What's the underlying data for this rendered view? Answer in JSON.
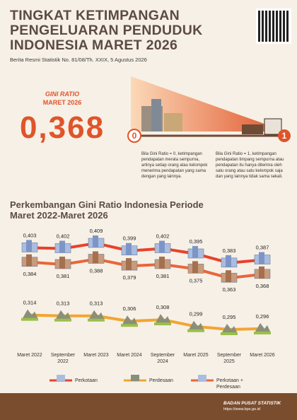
{
  "header": {
    "title": "TINGKAT KETIMPANGAN PENGELUARAN PENDUDUK INDONESIA MARET 2026",
    "subtitle": "Berita Resmi Statistik No. 81/08/Th. XXIX, 5 Agustus 2026"
  },
  "gini": {
    "label": "GINI RATIO",
    "date": "MARET 2026",
    "value": "0,368"
  },
  "illustration": {
    "left": "0",
    "right": "1"
  },
  "explanations": [
    "Bila Gini Ratio = 0, ketimpangan pendapatan merata sempurna, artinya setiap orang atau kelompok menerima pendapatan yang sama dengan yang lainnya.",
    "Bila Gini Ratio = 1, ketimpangan pendapatan timpang sempurna atau pendapatan itu hanya diterima oleh satu orang atau satu kelompok saja dan yang lainnya tidak sama sekali."
  ],
  "chart_data": {
    "type": "line",
    "title": "Perkembangan Gini Ratio Indonesia Periode Maret 2022-Maret 2026",
    "categories": [
      "Maret 2022",
      "September 2022",
      "Maret 2023",
      "Maret 2024",
      "September 2024",
      "Maret 2025",
      "September 2025",
      "Maret 2026"
    ],
    "series": [
      {
        "name": "Perkotaan",
        "color": "#e8412c",
        "values": [
          0.403,
          0.402,
          0.409,
          0.399,
          0.402,
          0.395,
          0.383,
          0.387
        ],
        "value_labels": [
          "0,403",
          "0,402",
          "0,409",
          "0,399",
          "0,402",
          "0,395",
          "0,383",
          "0,387"
        ]
      },
      {
        "name": "Perdesaan",
        "color": "#f2a531",
        "values": [
          0.314,
          0.313,
          0.313,
          0.306,
          0.308,
          0.299,
          0.295,
          0.296
        ],
        "value_labels": [
          "0,314",
          "0,313",
          "0,313",
          "0,306",
          "0,308",
          "0,299",
          "0,295",
          "0,296"
        ]
      },
      {
        "name": "Perkotaan + Perdesaan",
        "color": "#e9663a",
        "values": [
          0.384,
          0.381,
          0.388,
          0.379,
          0.381,
          0.375,
          0.363,
          0.368
        ],
        "value_labels": [
          "0,384",
          "0,381",
          "0,388",
          "0,379",
          "0,381",
          "0,375",
          "0,363",
          "0,368"
        ]
      }
    ]
  },
  "footer": {
    "org": "BADAN PUSAT STATISTIK",
    "url": "https://www.bps.go.id"
  }
}
